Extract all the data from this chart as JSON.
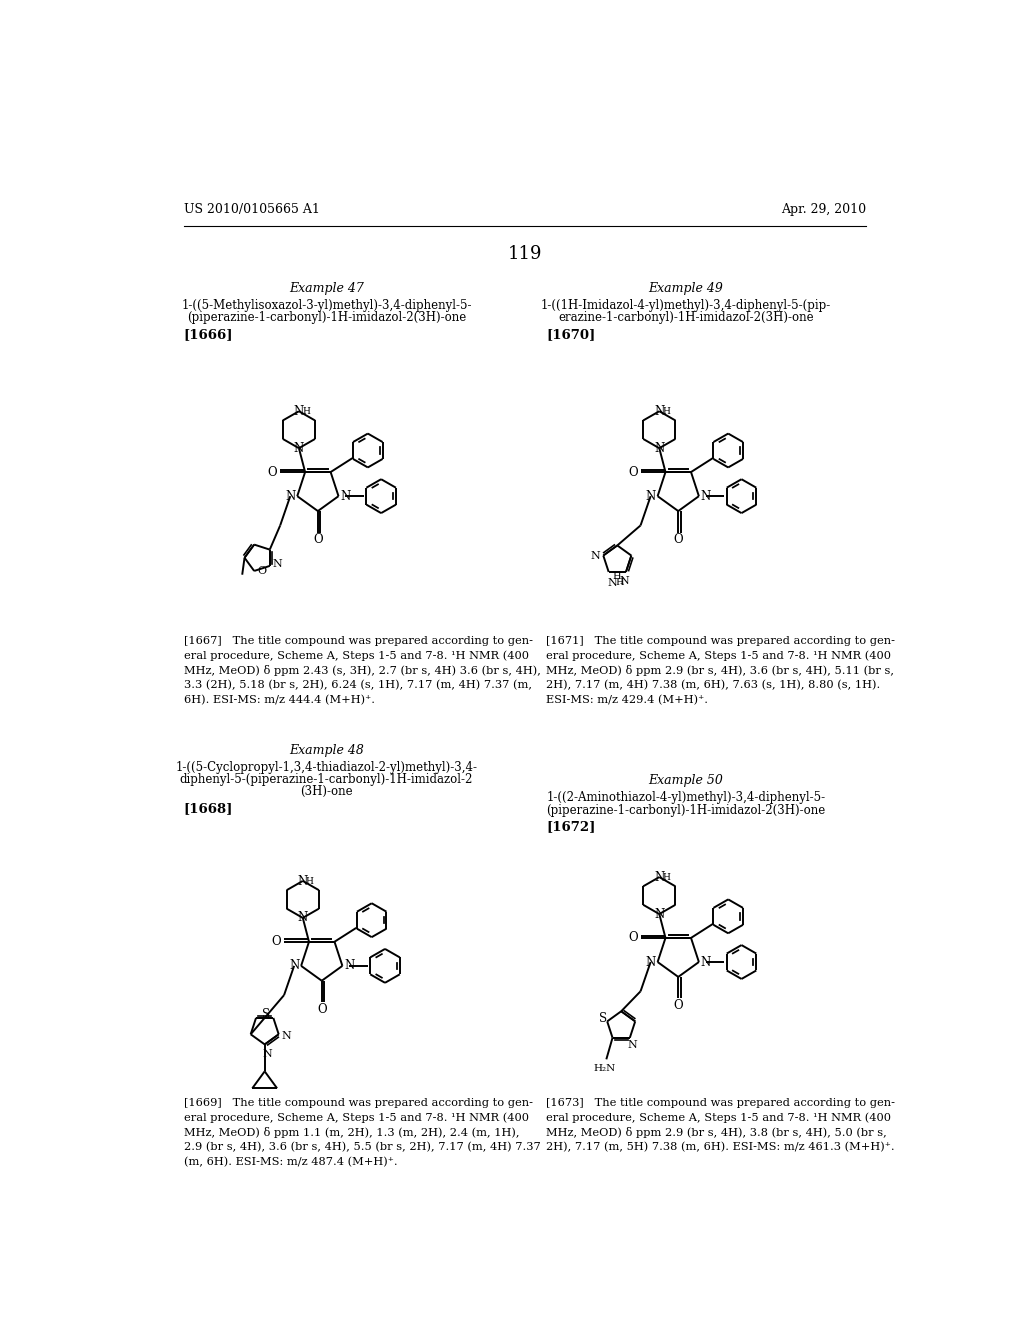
{
  "page_header_left": "US 2010/0105665 A1",
  "page_header_right": "Apr. 29, 2010",
  "page_number": "119",
  "example47_title": "Example 47",
  "example47_line1": "1-((5-Methylisoxazol-3-yl)methyl)-3,4-diphenyl-5-",
  "example47_line2": "(piperazine-1-carbonyl)-1H-imidazol-2(3H)-one",
  "example47_ref": "[1666]",
  "example47_nmr": "[1667]   The title compound was prepared according to gen-eral procedure, Scheme A, Steps 1-5 and 7-8. ¹H NMR (400 MHz, MeOD) δ ppm 2.43 (s, 3H), 2.7 (br s, 4H) 3.6 (br s, 4H), 3.3 (2H), 5.18 (br s, 2H), 6.24 (s, 1H), 7.17 (m, 4H) 7.37 (m, 6H). ESI-MS: m/z 444.4 (M+H)⁺.",
  "example48_title": "Example 48",
  "example48_line1": "1-((5-Cyclopropyl-1,3,4-thiadiazol-2-yl)methyl)-3,4-",
  "example48_line2": "diphenyl-5-(piperazine-1-carbonyl)-1H-imidazol-2",
  "example48_line3": "(3H)-one",
  "example48_ref": "[1668]",
  "example48_nmr": "[1669]   The title compound was prepared according to gen-eral procedure, Scheme A, Steps 1-5 and 7-8. ¹H NMR (400 MHz, MeOD) δ ppm 1.1 (m, 2H), 1.3 (m, 2H), 2.4 (m, 1H), 2.9 (br s, 4H), 3.6 (br s, 4H), 5.5 (br s, 2H), 7.17 (m, 4H) 7.37 (m, 6H). ESI-MS: m/z 487.4 (M+H)⁺.",
  "example49_title": "Example 49",
  "example49_line1": "1-((1H-Imidazol-4-yl)methyl)-3,4-diphenyl-5-(pip-",
  "example49_line2": "erazine-1-carbonyl)-1H-imidazol-2(3H)-one",
  "example49_ref": "[1670]",
  "example49_nmr": "[1671]   The title compound was prepared according to gen-eral procedure, Scheme A, Steps 1-5 and 7-8. ¹H NMR (400 MHz, MeOD) δ ppm 2.9 (br s, 4H), 3.6 (br s, 4H), 5.11 (br s, 2H), 7.17 (m, 4H) 7.38 (m, 6H), 7.63 (s, 1H), 8.80 (s, 1H). ESI-MS: m/z 429.4 (M+H)⁺.",
  "example50_title": "Example 50",
  "example50_line1": "1-((2-Aminothiazol-4-yl)methyl)-3,4-diphenyl-5-",
  "example50_line2": "(piperazine-1-carbonyl)-1H-imidazol-2(3H)-one",
  "example50_ref": "[1672]",
  "example50_nmr": "[1673]   The title compound was prepared according to gen-eral procedure, Scheme A, Steps 1-5 and 7-8. ¹H NMR (400 MHz, MeOD) δ ppm 2.9 (br s, 4H), 3.8 (br s, 4H), 5.0 (br s, 2H), 7.17 (m, 5H) 7.38 (m, 6H). ESI-MS: m/z 461.3 (M+H)⁺."
}
